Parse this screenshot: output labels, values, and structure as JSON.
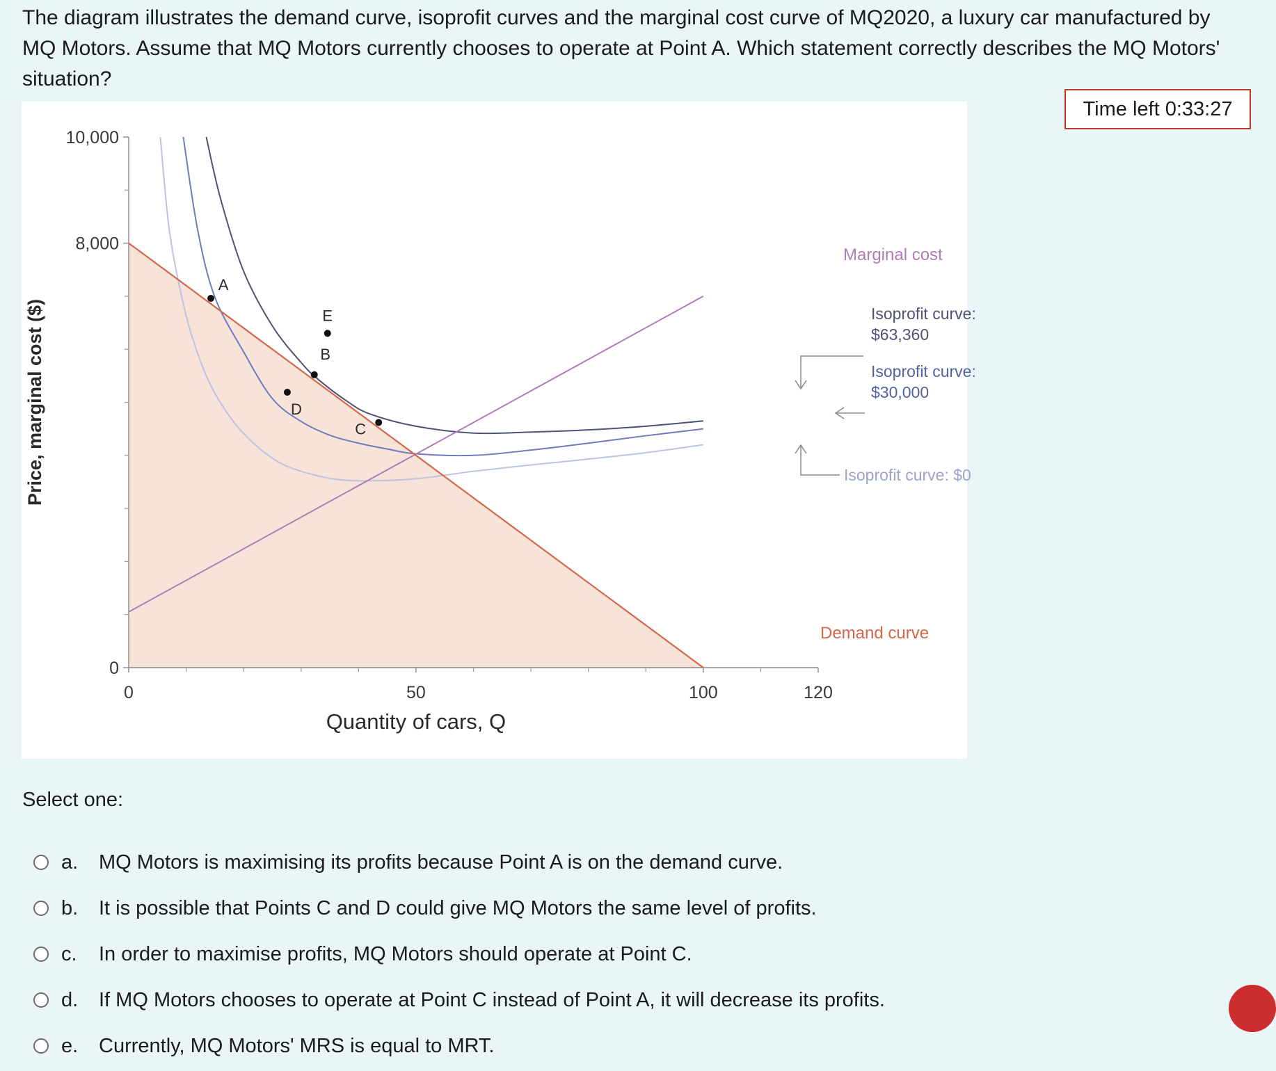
{
  "question": {
    "text": "The diagram illustrates the demand curve, isoprofit curves and the marginal cost curve of MQ2020, a luxury car manufactured by MQ Motors. Assume that MQ Motors currently chooses to operate at Point A. Which statement correctly describes the MQ Motors' situation?"
  },
  "timer": {
    "text": "Time left 0:33:27"
  },
  "select_prompt": "Select one:",
  "options": [
    {
      "letter": "a.",
      "text": "MQ Motors is maximising its profits because Point A is on the demand curve."
    },
    {
      "letter": "b.",
      "text": "It is possible that Points C and D could give MQ Motors the same level of profits."
    },
    {
      "letter": "c.",
      "text": "In order to maximise profits, MQ Motors should operate at Point C."
    },
    {
      "letter": "d.",
      "text": "If MQ Motors chooses to operate at Point C instead of Point A, it will decrease its profits."
    },
    {
      "letter": "e.",
      "text": "Currently, MQ Motors' MRS is equal to MRT."
    }
  ],
  "chart_data": {
    "type": "line",
    "title": "",
    "xlabel": "Quantity of cars, Q",
    "ylabel": "Price, marginal cost ($)",
    "xlim": [
      0,
      122
    ],
    "ylim": [
      0,
      10400
    ],
    "x_ticks": [
      0,
      50,
      100,
      120
    ],
    "x_tick_labels": [
      "0",
      "50",
      "100",
      "120"
    ],
    "x_minor_ticks": [
      10,
      20,
      30,
      40,
      60,
      70,
      80,
      90,
      110
    ],
    "y_ticks": [
      0,
      8000,
      10000
    ],
    "y_tick_labels": [
      "0",
      "8,000",
      "10,000"
    ],
    "y_minor_ticks": [
      1000,
      2000,
      3000,
      4000,
      5000,
      6000,
      7000,
      9000
    ],
    "grid": false,
    "colors": {
      "demand": "#d4674a",
      "marginal_cost": "#b07cba",
      "iso_high": "#4e5276",
      "iso_mid": "#6f7cbc",
      "iso_low": "#bcc4e0",
      "shade": "#f7e3d8"
    },
    "series": [
      {
        "name": "Demand curve",
        "kind": "line",
        "x": [
          0,
          100
        ],
        "y": [
          8000,
          0
        ]
      },
      {
        "name": "Marginal cost",
        "kind": "line",
        "x": [
          0,
          100
        ],
        "y": [
          1050,
          7000
        ]
      },
      {
        "name": "Isoprofit curve: $63,360",
        "kind": "isoprofit",
        "profit": 63360,
        "x": [
          13.5,
          16,
          20,
          25,
          30,
          33,
          38,
          42,
          50,
          60,
          70,
          80,
          90,
          100
        ],
        "y": [
          10000,
          8830,
          7470,
          6440,
          5750,
          5430,
          5020,
          4780,
          4550,
          4420,
          4440,
          4480,
          4550,
          4650
        ]
      },
      {
        "name": "Isoprofit curve: $30,000",
        "kind": "isoprofit",
        "profit": 30000,
        "x": [
          9.5,
          12,
          15,
          20,
          25,
          30,
          35,
          40,
          45,
          50,
          60,
          70,
          80,
          90,
          100
        ],
        "y": [
          10000,
          8250,
          6980,
          5950,
          5070,
          4640,
          4380,
          4230,
          4120,
          4030,
          4000,
          4100,
          4230,
          4370,
          4500
        ]
      },
      {
        "name": "Isoprofit curve: $0",
        "kind": "isoprofit",
        "profit": 0,
        "x": [
          5.5,
          7,
          9,
          11,
          14,
          18,
          22,
          26,
          30,
          36,
          42,
          50,
          60,
          70,
          80,
          90,
          100
        ],
        "y": [
          10000,
          8300,
          7100,
          6250,
          5380,
          4670,
          4200,
          3880,
          3700,
          3550,
          3520,
          3560,
          3700,
          3820,
          3930,
          4050,
          4200
        ]
      }
    ],
    "points": [
      {
        "label": "A",
        "x": 14.3,
        "y": 6960
      },
      {
        "label": "B",
        "x": 32.3,
        "y": 5520
      },
      {
        "label": "C",
        "x": 43.5,
        "y": 4620
      },
      {
        "label": "D",
        "x": 27.6,
        "y": 5190
      },
      {
        "label": "E",
        "x": 34.6,
        "y": 6300
      }
    ],
    "annotations": {
      "marginal_cost_label": "Marginal cost",
      "demand_label": "Demand curve",
      "iso_high_line1": "Isoprofit curve:",
      "iso_high_line2": "$63,360",
      "iso_mid_line1": "Isoprofit curve:",
      "iso_mid_line2": "$30,000",
      "iso_low_label": "Isoprofit curve: $0"
    }
  }
}
